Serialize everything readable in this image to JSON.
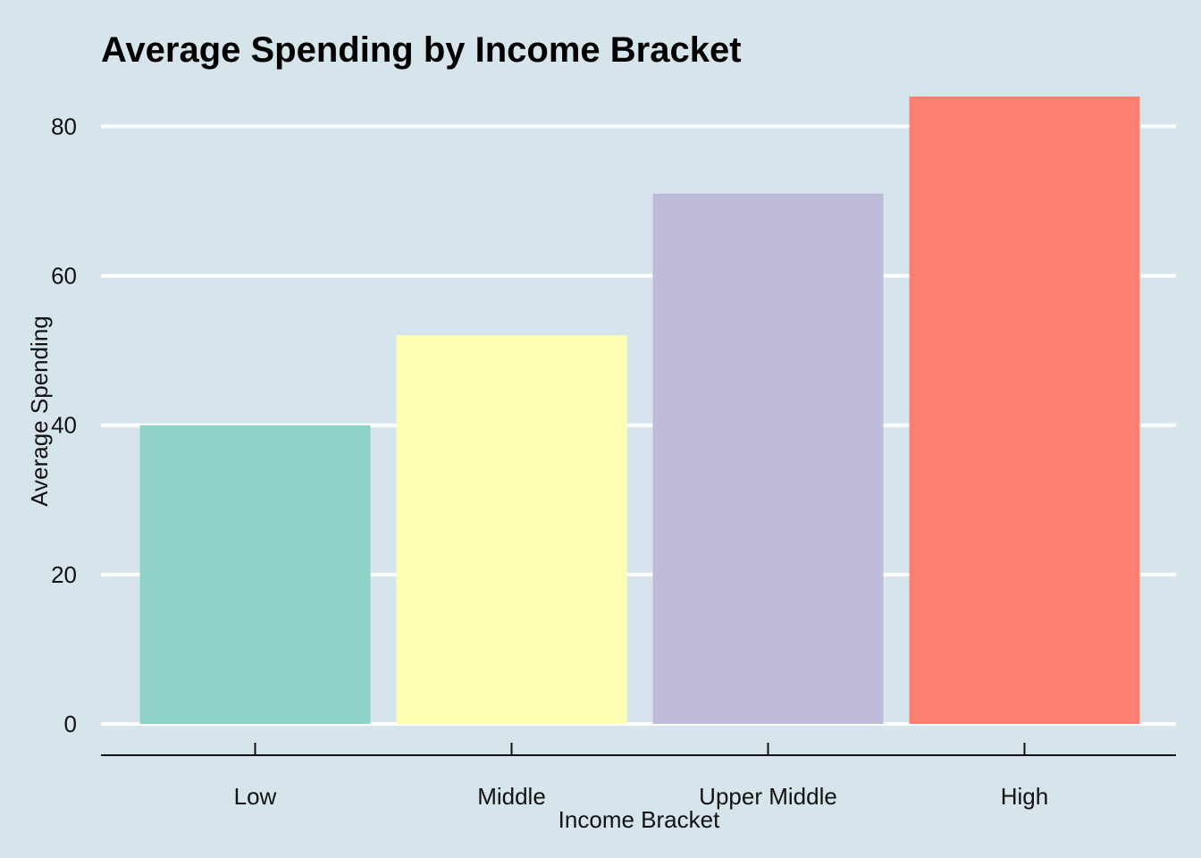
{
  "chart_data": {
    "type": "bar",
    "title": "Average Spending by Income Bracket",
    "xlabel": "Income Bracket",
    "ylabel": "Average Spending",
    "categories": [
      "Low",
      "Middle",
      "Upper Middle",
      "High"
    ],
    "values": [
      40,
      52,
      71,
      84
    ],
    "colors": [
      "#8fd3c8",
      "#ffffb3",
      "#bebada",
      "#fb8072"
    ],
    "ylim": [
      0,
      84
    ],
    "yticks": [
      0,
      20,
      40,
      60,
      80
    ],
    "ytick_labels": [
      "0",
      "20",
      "40",
      "60",
      "80"
    ],
    "grid": "horizontal major, white",
    "background": "#d6e4ec",
    "legend": "none"
  }
}
